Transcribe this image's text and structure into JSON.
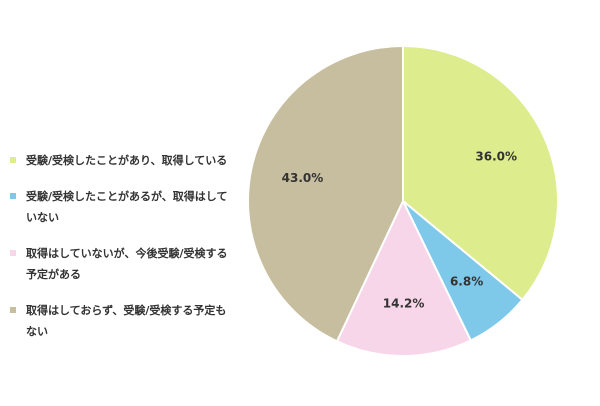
{
  "chart_data": {
    "type": "pie",
    "title": "",
    "start_angle_deg": 0,
    "direction": "clockwise",
    "legend_position": "left",
    "slices": [
      {
        "label": "受験/受検したことがあり、取得している",
        "value": 36.0,
        "display": "36.0%",
        "color": "#ddec8c"
      },
      {
        "label": "受験/受検したことがあるが、取得はしていない",
        "value": 6.8,
        "display": "6.8%",
        "color": "#7ec9ea"
      },
      {
        "label": "取得はしていないが、今後受験/受検する予定がある",
        "value": 14.2,
        "display": "14.2%",
        "color": "#f7d6e9"
      },
      {
        "label": "取得はしておらず、受験/受検する予定もない",
        "value": 43.0,
        "display": "43.0%",
        "color": "#c6be9e"
      }
    ]
  }
}
